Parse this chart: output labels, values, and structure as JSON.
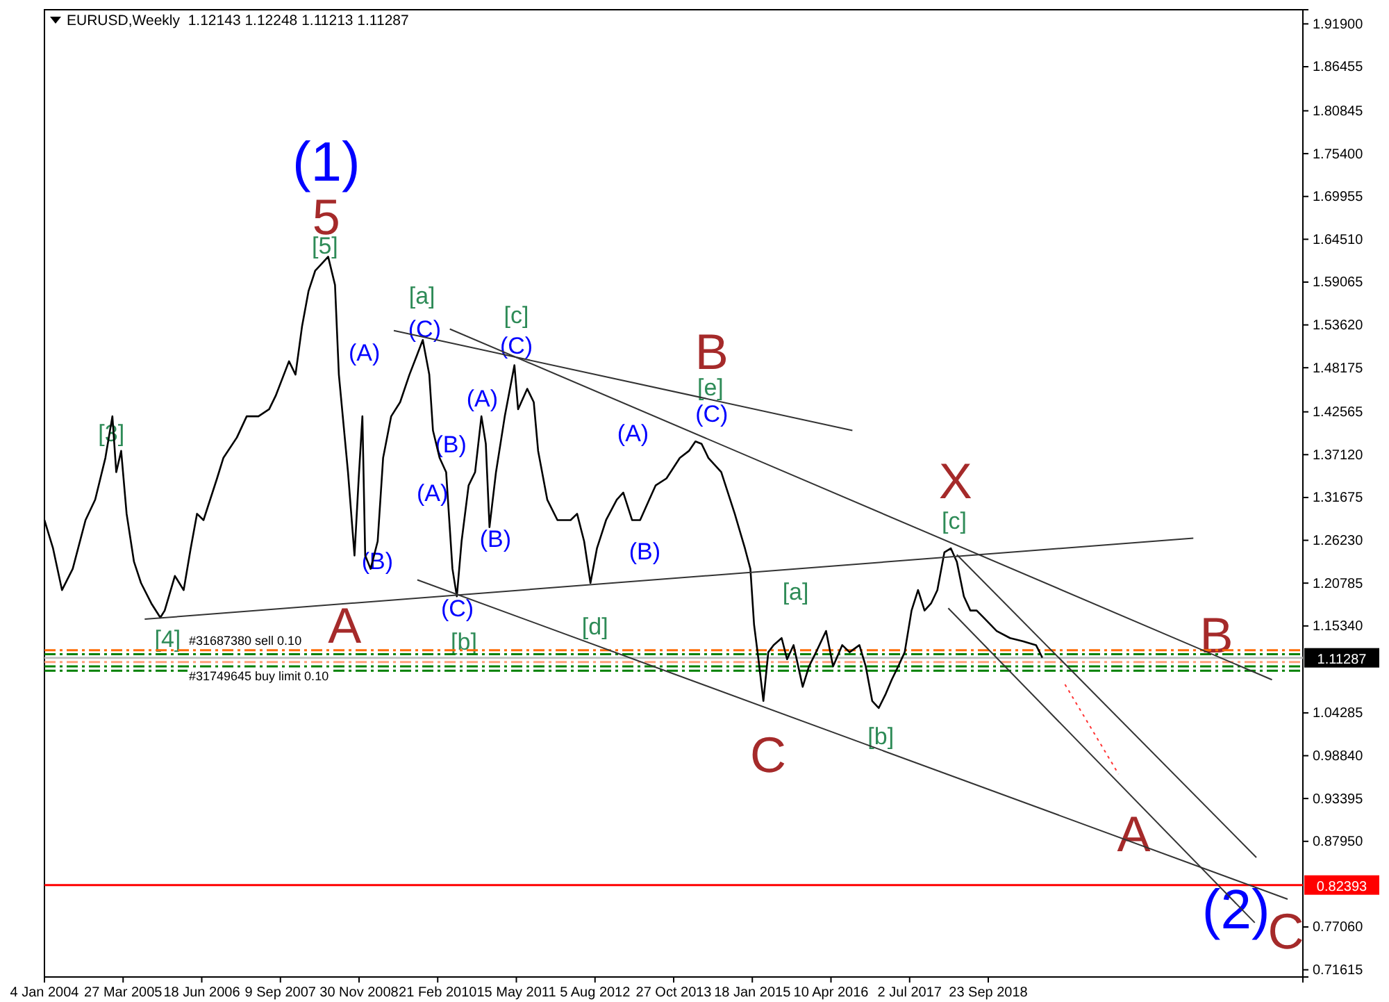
{
  "chart_data": {
    "type": "line",
    "title": "EURUSD,Weekly  1.12143 1.12248 1.11213 1.11287",
    "xlim": [
      "2004-01-04",
      "2023-08-20"
    ],
    "xticks": [
      {
        "value": "2004-01-04",
        "label": "4 Jan 2004"
      },
      {
        "value": "2005-03-27",
        "label": "27 Mar 2005"
      },
      {
        "value": "2006-06-18",
        "label": "18 Jun 2006"
      },
      {
        "value": "2007-09-09",
        "label": "9 Sep 2007"
      },
      {
        "value": "2008-11-30",
        "label": "30 Nov 2008"
      },
      {
        "value": "2010-02-21",
        "label": "21 Feb 2010"
      },
      {
        "value": "2011-05-15",
        "label": "15 May 2011"
      },
      {
        "value": "2012-08-05",
        "label": "5 Aug 2012"
      },
      {
        "value": "2013-10-27",
        "label": "27 Oct 2013"
      },
      {
        "value": "2015-01-18",
        "label": "18 Jan 2015"
      },
      {
        "value": "2016-04-10",
        "label": "10 Apr 2016"
      },
      {
        "value": "2017-07-02",
        "label": "2 Jul 2017"
      },
      {
        "value": "2018-09-23",
        "label": "23 Sep 2018"
      }
    ],
    "ylim": [
      0.707,
      1.937
    ],
    "yticks": [
      {
        "value": 1.919,
        "label": "1.91900"
      },
      {
        "value": 1.86455,
        "label": "1.86455"
      },
      {
        "value": 1.80845,
        "label": "1.80845"
      },
      {
        "value": 1.754,
        "label": "1.75400"
      },
      {
        "value": 1.69955,
        "label": "1.69955"
      },
      {
        "value": 1.6451,
        "label": "1.64510"
      },
      {
        "value": 1.59065,
        "label": "1.59065"
      },
      {
        "value": 1.5362,
        "label": "1.53620"
      },
      {
        "value": 1.48175,
        "label": "1.48175"
      },
      {
        "value": 1.42565,
        "label": "1.42565"
      },
      {
        "value": 1.3712,
        "label": "1.37120"
      },
      {
        "value": 1.31675,
        "label": "1.31675"
      },
      {
        "value": 1.2623,
        "label": "1.26230"
      },
      {
        "value": 1.20785,
        "label": "1.20785"
      },
      {
        "value": 1.1534,
        "label": "1.15340"
      },
      {
        "value": 1.04285,
        "label": "1.04285"
      },
      {
        "value": 0.9884,
        "label": "0.98840"
      },
      {
        "value": 0.93395,
        "label": "0.93395"
      },
      {
        "value": 0.8795,
        "label": "0.87950"
      },
      {
        "value": 0.7706,
        "label": "0.77060"
      },
      {
        "value": 0.71615,
        "label": "0.71615"
      }
    ],
    "grid": false,
    "marker": "none",
    "series": [
      {
        "color": "#000000",
        "x": [
          "2004-01-04",
          "2004-02-22",
          "2004-04-13",
          "2004-06-13",
          "2004-08-25",
          "2004-10-19",
          "2004-12-16",
          "2005-01-25",
          "2005-02-16",
          "2005-03-16",
          "2005-04-16",
          "2005-05-28",
          "2005-07-07",
          "2005-09-04",
          "2005-10-25",
          "2005-11-19",
          "2006-01-16",
          "2006-03-07",
          "2006-04-16",
          "2006-05-22",
          "2006-06-28",
          "2006-09-13",
          "2006-10-19",
          "2007-01-04",
          "2007-03-01",
          "2007-05-07",
          "2007-07-07",
          "2007-08-13",
          "2007-10-28",
          "2007-12-04",
          "2008-01-10",
          "2008-02-16",
          "2008-03-25",
          "2008-05-01",
          "2008-06-07",
          "2008-07-16",
          "2008-08-07",
          "2008-09-28",
          "2008-11-04",
          "2008-11-28",
          "2008-12-19",
          "2009-01-04",
          "2009-02-04",
          "2009-03-16",
          "2009-04-16",
          "2009-06-01",
          "2009-07-22",
          "2009-09-13",
          "2009-10-28",
          "2009-11-28",
          "2010-01-04",
          "2010-01-25",
          "2010-03-04",
          "2010-04-10",
          "2010-05-16",
          "2010-06-10",
          "2010-07-07",
          "2010-08-16",
          "2010-09-22",
          "2010-10-28",
          "2010-11-22",
          "2010-12-13",
          "2011-01-19",
          "2011-03-10",
          "2011-05-04",
          "2011-05-25",
          "2011-07-16",
          "2011-08-22",
          "2011-09-16",
          "2011-11-07",
          "2012-01-04",
          "2012-03-19",
          "2012-04-25",
          "2012-06-04",
          "2012-07-10",
          "2012-08-16",
          "2012-10-07",
          "2012-12-07",
          "2013-01-13",
          "2013-03-04",
          "2013-04-19",
          "2013-06-10",
          "2013-07-16",
          "2013-09-16",
          "2013-12-01",
          "2014-01-22",
          "2014-02-28",
          "2014-04-04",
          "2014-05-13",
          "2014-06-19",
          "2014-07-25",
          "2014-10-10",
          "2014-12-07",
          "2015-01-07",
          "2015-01-28",
          "2015-02-22",
          "2015-03-22",
          "2015-04-19",
          "2015-05-19",
          "2015-07-04",
          "2015-08-04",
          "2015-09-10",
          "2015-11-01",
          "2015-12-07",
          "2016-01-16",
          "2016-03-13",
          "2016-04-22",
          "2016-06-13",
          "2016-07-25",
          "2016-09-19",
          "2016-10-25",
          "2016-12-01",
          "2017-01-07",
          "2017-02-16",
          "2017-03-22",
          "2017-04-28",
          "2017-06-04",
          "2017-07-13",
          "2017-08-19",
          "2017-09-25",
          "2017-11-01",
          "2017-12-07",
          "2018-01-16",
          "2018-02-22",
          "2018-03-28",
          "2018-05-07",
          "2018-06-13",
          "2018-07-19",
          "2018-08-28",
          "2018-11-10",
          "2019-01-25",
          "2019-04-07",
          "2019-06-22",
          "2019-07-28"
        ],
        "values": [
          1.288,
          1.252,
          1.199,
          1.226,
          1.288,
          1.314,
          1.367,
          1.42,
          1.349,
          1.376,
          1.296,
          1.235,
          1.208,
          1.182,
          1.164,
          1.173,
          1.217,
          1.199,
          1.252,
          1.296,
          1.288,
          1.341,
          1.367,
          1.393,
          1.42,
          1.42,
          1.429,
          1.446,
          1.49,
          1.473,
          1.534,
          1.579,
          1.605,
          1.614,
          1.623,
          1.587,
          1.473,
          1.349,
          1.243,
          1.341,
          1.42,
          1.243,
          1.226,
          1.261,
          1.367,
          1.42,
          1.438,
          1.473,
          1.499,
          1.517,
          1.473,
          1.402,
          1.367,
          1.349,
          1.226,
          1.191,
          1.261,
          1.332,
          1.349,
          1.42,
          1.385,
          1.279,
          1.349,
          1.42,
          1.485,
          1.429,
          1.455,
          1.438,
          1.376,
          1.314,
          1.288,
          1.288,
          1.296,
          1.261,
          1.208,
          1.252,
          1.288,
          1.314,
          1.323,
          1.288,
          1.288,
          1.314,
          1.332,
          1.341,
          1.367,
          1.376,
          1.388,
          1.385,
          1.367,
          1.358,
          1.349,
          1.296,
          1.252,
          1.226,
          1.155,
          1.111,
          1.058,
          1.12,
          1.129,
          1.138,
          1.111,
          1.129,
          1.076,
          1.102,
          1.12,
          1.147,
          1.102,
          1.129,
          1.12,
          1.129,
          1.102,
          1.058,
          1.049,
          1.067,
          1.085,
          1.102,
          1.12,
          1.173,
          1.199,
          1.173,
          1.182,
          1.199,
          1.247,
          1.252,
          1.235,
          1.191,
          1.173,
          1.173,
          1.164,
          1.147,
          1.138,
          1.134,
          1.129,
          1.113
        ]
      },
      {
        "type": "line",
        "color": "#333333",
        "x": [
          "2005-07-28",
          "2021-12-04"
        ],
        "values": [
          1.162,
          1.265
        ]
      },
      {
        "type": "line",
        "color": "#333333",
        "x": [
          "2009-06-16",
          "2016-08-10"
        ],
        "values": [
          1.529,
          1.402
        ]
      },
      {
        "type": "line",
        "color": "#333333",
        "x": [
          "2010-05-01",
          "2023-02-25"
        ],
        "values": [
          1.531,
          1.085
        ]
      },
      {
        "type": "line",
        "color": "#333333",
        "x": [
          "2009-10-28",
          "2023-05-25"
        ],
        "values": [
          1.212,
          0.806
        ]
      },
      {
        "type": "line",
        "color": "#333333",
        "x": [
          "2018-03-28",
          "2022-11-28"
        ],
        "values": [
          1.244,
          0.859
        ]
      },
      {
        "type": "line",
        "color": "#333333",
        "x": [
          "2018-02-07",
          "2022-11-19"
        ],
        "values": [
          1.176,
          0.776
        ]
      },
      {
        "type": "line",
        "color": "#ff3333",
        "line_style": "dotted",
        "x": [
          "2019-12-04",
          "2020-10-04"
        ],
        "values": [
          1.079,
          0.965
        ]
      }
    ],
    "ref_lines": [
      {
        "axis": "y",
        "value": 1.1225,
        "label": "#31687380 sell 0.10",
        "color": "#ff6a00",
        "line_style": "dashed"
      },
      {
        "axis": "y",
        "value": 1.1175,
        "color": "#008000",
        "line_style": "dashed"
      },
      {
        "axis": "y",
        "value": 1.1075,
        "label": "#31749645 buy limit 0.10",
        "color": "#ffa07a",
        "line_style": "dashed"
      },
      {
        "axis": "y",
        "value": 1.102,
        "color": "#008000",
        "line_style": "dashed"
      },
      {
        "axis": "y",
        "value": 1.0965,
        "color": "#008000",
        "line_style": "dashed"
      },
      {
        "axis": "y",
        "value": 1.11287,
        "label": "1.11287",
        "color": "#c0c0c0",
        "line_style": "solid"
      },
      {
        "axis": "y",
        "value": 0.82393,
        "label": "0.82393",
        "color": "#ff0000",
        "line_style": "solid"
      }
    ],
    "annotations": [
      "(1)",
      "5",
      "[5]",
      "[3]",
      "[4]",
      "A",
      "(A)",
      "(B)",
      "[a]",
      "(C)",
      "(B)",
      "(A)",
      "(C)",
      "[b]",
      "(A)",
      "(B)",
      "[c]",
      "(C)",
      "(A)",
      "(B)",
      "[d]",
      "B",
      "[e]",
      "(C)",
      "X",
      "[c]",
      "[a]",
      "C",
      "[b]",
      "B",
      "A",
      "C",
      "(2)"
    ]
  }
}
